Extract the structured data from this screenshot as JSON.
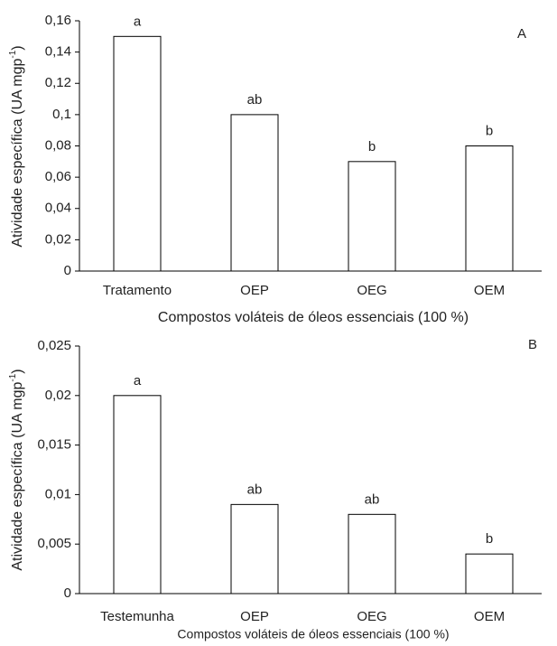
{
  "chart_data": [
    {
      "type": "bar",
      "panel": "A",
      "ylabel": "Atividade específica (UA mgp",
      "ylabel_sup": "-1",
      "ylabel_end": ")",
      "xlabel": "Compostos voláteis de óleos essenciais (100 %)",
      "categories": [
        "Tratamento",
        "OEP",
        "OEG",
        "OEM"
      ],
      "values": [
        0.15,
        0.1,
        0.07,
        0.08
      ],
      "annotations": [
        "a",
        "ab",
        "b",
        "b"
      ],
      "color": "#ffffff",
      "ylim": [
        0,
        0.16
      ],
      "yticks": [
        0,
        {
          "value": 0.02,
          "label": "0,02"
        },
        {
          "value": 0.04,
          "label": "0,04"
        },
        {
          "value": 0.06,
          "label": "0,06"
        },
        {
          "value": 0.08,
          "label": "0,08"
        },
        {
          "value": 0.1,
          "label": "0,1"
        },
        {
          "value": 0.12,
          "label": "0,12"
        },
        {
          "value": 0.14,
          "label": "0,14"
        },
        {
          "value": 0.16,
          "label": "0,16"
        }
      ],
      "grid": false
    },
    {
      "type": "bar",
      "panel": "B",
      "ylabel": "Atividade específica (UA mgp",
      "ylabel_sup": "-1",
      "ylabel_end": ")",
      "xlabel": "Compostos voláteis de óleos essenciais (100 %)",
      "categories": [
        "Testemunha",
        "OEP",
        "OEG",
        "OEM"
      ],
      "values": [
        0.02,
        0.009,
        0.008,
        0.004
      ],
      "annotations": [
        "a",
        "ab",
        "ab",
        "b"
      ],
      "color": "#ffffff",
      "ylim": [
        0,
        0.025
      ],
      "yticks": [
        0,
        {
          "value": 0.005,
          "label": "0,005"
        },
        {
          "value": 0.01,
          "label": "0,01"
        },
        {
          "value": 0.015,
          "label": "0,015"
        },
        {
          "value": 0.02,
          "label": "0,02"
        },
        {
          "value": 0.025,
          "label": "0,025"
        }
      ],
      "grid": false
    }
  ]
}
